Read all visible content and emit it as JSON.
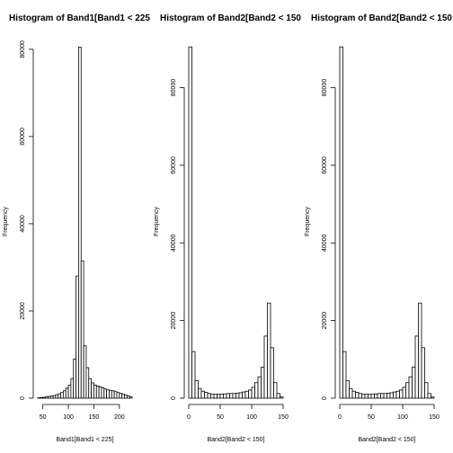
{
  "chart_data": [
    {
      "type": "bar",
      "title": "Histogram of Band1[Band1 < 225",
      "xlabel": "Band1[Band1 < 225]",
      "ylabel": "Frequency",
      "xlim": [
        40,
        225
      ],
      "ylim": [
        0,
        81000
      ],
      "xticks": [
        "50",
        "100",
        "150",
        "200"
      ],
      "yticks": [
        "0",
        "20000",
        "40000",
        "60000",
        "80000"
      ],
      "bin_width": 5,
      "x": [
        40,
        45,
        50,
        55,
        60,
        65,
        70,
        75,
        80,
        85,
        90,
        95,
        100,
        105,
        110,
        115,
        120,
        125,
        130,
        135,
        140,
        145,
        150,
        155,
        160,
        165,
        170,
        175,
        180,
        185,
        190,
        195,
        200,
        205,
        210,
        215,
        220
      ],
      "values": [
        100,
        150,
        200,
        300,
        400,
        500,
        600,
        800,
        1000,
        1300,
        1700,
        2300,
        3000,
        4500,
        9000,
        28000,
        80500,
        31500,
        12000,
        7000,
        4500,
        3500,
        3000,
        2800,
        2600,
        2400,
        2100,
        1900,
        1800,
        1700,
        1500,
        1300,
        1100,
        900,
        700,
        500,
        300
      ]
    },
    {
      "type": "bar",
      "title": "Histogram of Band2[Band2 < 150",
      "xlabel": "Band2[Band2 < 150]",
      "ylabel": "Frequency",
      "xlim": [
        0,
        150
      ],
      "ylim": [
        0,
        91000
      ],
      "xticks": [
        "0",
        "50",
        "100",
        "150"
      ],
      "yticks": [
        "0",
        "20000",
        "40000",
        "60000",
        "80000"
      ],
      "bin_width": 5,
      "x": [
        0,
        5,
        10,
        15,
        20,
        25,
        30,
        35,
        40,
        45,
        50,
        55,
        60,
        65,
        70,
        75,
        80,
        85,
        90,
        95,
        100,
        105,
        110,
        115,
        120,
        125,
        130,
        135,
        140,
        145
      ],
      "values": [
        90500,
        12000,
        4500,
        2500,
        1800,
        1500,
        1200,
        1000,
        1000,
        1000,
        1000,
        1100,
        1200,
        1200,
        1200,
        1300,
        1400,
        1600,
        1800,
        2100,
        2800,
        4000,
        5500,
        8000,
        16000,
        24500,
        13000,
        4000,
        1200,
        300
      ]
    },
    {
      "type": "bar",
      "title": "Histogram of Band2[Band2 < 150",
      "xlabel": "Band2[Band2 < 150]",
      "ylabel": "Frequency",
      "xlim": [
        0,
        150
      ],
      "ylim": [
        0,
        91000
      ],
      "xticks": [
        "0",
        "50",
        "100",
        "150"
      ],
      "yticks": [
        "0",
        "20000",
        "40000",
        "60000",
        "80000"
      ],
      "bin_width": 5,
      "x": [
        0,
        5,
        10,
        15,
        20,
        25,
        30,
        35,
        40,
        45,
        50,
        55,
        60,
        65,
        70,
        75,
        80,
        85,
        90,
        95,
        100,
        105,
        110,
        115,
        120,
        125,
        130,
        135,
        140,
        145
      ],
      "values": [
        90500,
        12000,
        4500,
        2500,
        1800,
        1500,
        1200,
        1000,
        1000,
        1000,
        1000,
        1100,
        1200,
        1200,
        1200,
        1300,
        1400,
        1600,
        1800,
        2100,
        2800,
        4000,
        5500,
        8000,
        16000,
        24500,
        13000,
        4000,
        1200,
        300
      ]
    }
  ],
  "style": {
    "bar_fill": "#ffffff",
    "bar_stroke": "#000000",
    "axis_color": "#000000",
    "background": "#ffffff"
  }
}
